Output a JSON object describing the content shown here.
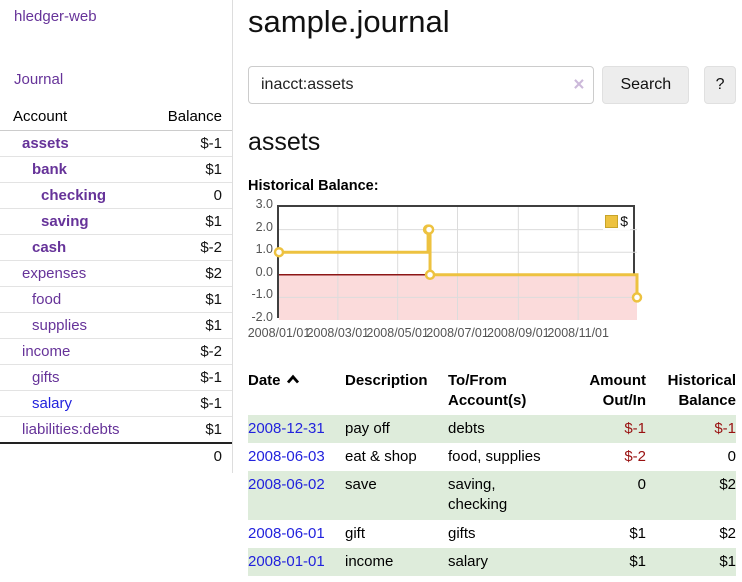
{
  "app": {
    "brand": "hledger-web"
  },
  "colors": {
    "link_purple": "#663399",
    "link_blue": "#2222dd",
    "negative_strong": "#991111",
    "negative_soft": "#c46666",
    "row_green": "#deecdb",
    "chart_gold": "#edc240"
  },
  "sidebar": {
    "journal_link": "Journal",
    "accounts_table": {
      "headers": [
        "Account",
        "Balance"
      ],
      "rows": [
        {
          "name": "assets",
          "indent": 1,
          "bold": true,
          "balance": "$-1",
          "balance_tone": "negative-strong"
        },
        {
          "name": "bank",
          "indent": 2,
          "bold": true,
          "balance": "$1",
          "balance_tone": "normal"
        },
        {
          "name": "checking",
          "indent": 3,
          "bold": true,
          "balance": "0",
          "balance_tone": "normal"
        },
        {
          "name": "saving",
          "indent": 3,
          "bold": true,
          "balance": "$1",
          "balance_tone": "normal"
        },
        {
          "name": "cash",
          "indent": 2,
          "bold": true,
          "balance": "$-2",
          "balance_tone": "negative-strong"
        },
        {
          "name": "expenses",
          "indent": 1,
          "bold": false,
          "balance": "$2",
          "balance_tone": "normal"
        },
        {
          "name": "food",
          "indent": 2,
          "bold": false,
          "balance": "$1",
          "balance_tone": "normal"
        },
        {
          "name": "supplies",
          "indent": 2,
          "bold": false,
          "balance": "$1",
          "balance_tone": "normal"
        },
        {
          "name": "income",
          "indent": 1,
          "bold": false,
          "balance": "$-2",
          "balance_tone": "negative-soft"
        },
        {
          "name": "gifts",
          "indent": 2,
          "bold": false,
          "balance": "$-1",
          "balance_tone": "negative-soft"
        },
        {
          "name": "salary",
          "indent": 2,
          "bold": false,
          "balance": "$-1",
          "balance_tone": "negative-soft",
          "link_tone": "blue"
        },
        {
          "name": "liabilities:debts",
          "indent": 1,
          "bold": false,
          "balance": "$1",
          "balance_tone": "normal"
        }
      ],
      "total": "0"
    }
  },
  "main": {
    "title": "sample.journal",
    "search": {
      "value": "inacct:assets",
      "clear_icon": "×",
      "search_button": "Search",
      "help_button": "?"
    },
    "account_heading": "assets",
    "chart_title": "Historical Balance:"
  },
  "chart_data": {
    "type": "line",
    "step": true,
    "title": "Historical Balance:",
    "legend": {
      "label": "$",
      "position": "top-right"
    },
    "series": [
      {
        "name": "$",
        "color": "#edc240",
        "points": [
          {
            "x": "2008-01-01",
            "y": 1
          },
          {
            "x": "2008-06-01",
            "y": 2
          },
          {
            "x": "2008-06-02",
            "y": 2
          },
          {
            "x": "2008-06-03",
            "y": 0
          },
          {
            "x": "2008-12-31",
            "y": -1
          }
        ]
      }
    ],
    "xlim": [
      "2008-01-01",
      "2008-12-31"
    ],
    "ylim": [
      -2,
      3
    ],
    "y_ticks": [
      {
        "v": 3,
        "label": "3.0"
      },
      {
        "v": 2,
        "label": "2.0"
      },
      {
        "v": 1,
        "label": "1.0"
      },
      {
        "v": 0,
        "label": "0.0"
      },
      {
        "v": -1,
        "label": "-1.0"
      },
      {
        "v": -2,
        "label": "-2.0"
      }
    ],
    "x_ticks": [
      {
        "v": "2008-01-01",
        "label": "2008/01/01"
      },
      {
        "v": "2008-03-01",
        "label": "2008/03/01"
      },
      {
        "v": "2008-05-01",
        "label": "2008/05/01"
      },
      {
        "v": "2008-07-01",
        "label": "2008/07/01"
      },
      {
        "v": "2008-09-01",
        "label": "2008/09/01"
      },
      {
        "v": "2008-11-01",
        "label": "2008/11/01"
      }
    ],
    "grid": true,
    "colors": {
      "line": "#edc240",
      "marker_fill": "#ffffff",
      "negative_fill": "#fbdbdb",
      "zero_line": "#8c1616",
      "grid": "#dcdcdc",
      "border": "#3f3f3f",
      "tick_text": "#545454"
    }
  },
  "register": {
    "headers": [
      "Date",
      "Description",
      "To/From Account(s)",
      "Amount Out/In",
      "Historical Balance"
    ],
    "sort": {
      "column": "Date",
      "direction": "ascending",
      "icon": "chevron-up"
    },
    "rows": [
      {
        "date": "2008-12-31",
        "description": "pay off",
        "accounts": "debts",
        "amount": "$-1",
        "amount_negative": true,
        "balance": "$-1",
        "balance_negative": true
      },
      {
        "date": "2008-06-03",
        "description": "eat & shop",
        "accounts": "food, supplies",
        "amount": "$-2",
        "amount_negative": true,
        "balance": "0",
        "balance_negative": false
      },
      {
        "date": "2008-06-02",
        "description": "save",
        "accounts": "saving,\nchecking",
        "amount": "0",
        "amount_negative": false,
        "balance": "$2",
        "balance_negative": false
      },
      {
        "date": "2008-06-01",
        "description": "gift",
        "accounts": "gifts",
        "amount": "$1",
        "amount_negative": false,
        "balance": "$2",
        "balance_negative": false
      },
      {
        "date": "2008-01-01",
        "description": "income",
        "accounts": "salary",
        "amount": "$1",
        "amount_negative": false,
        "balance": "$1",
        "balance_negative": false
      }
    ]
  }
}
